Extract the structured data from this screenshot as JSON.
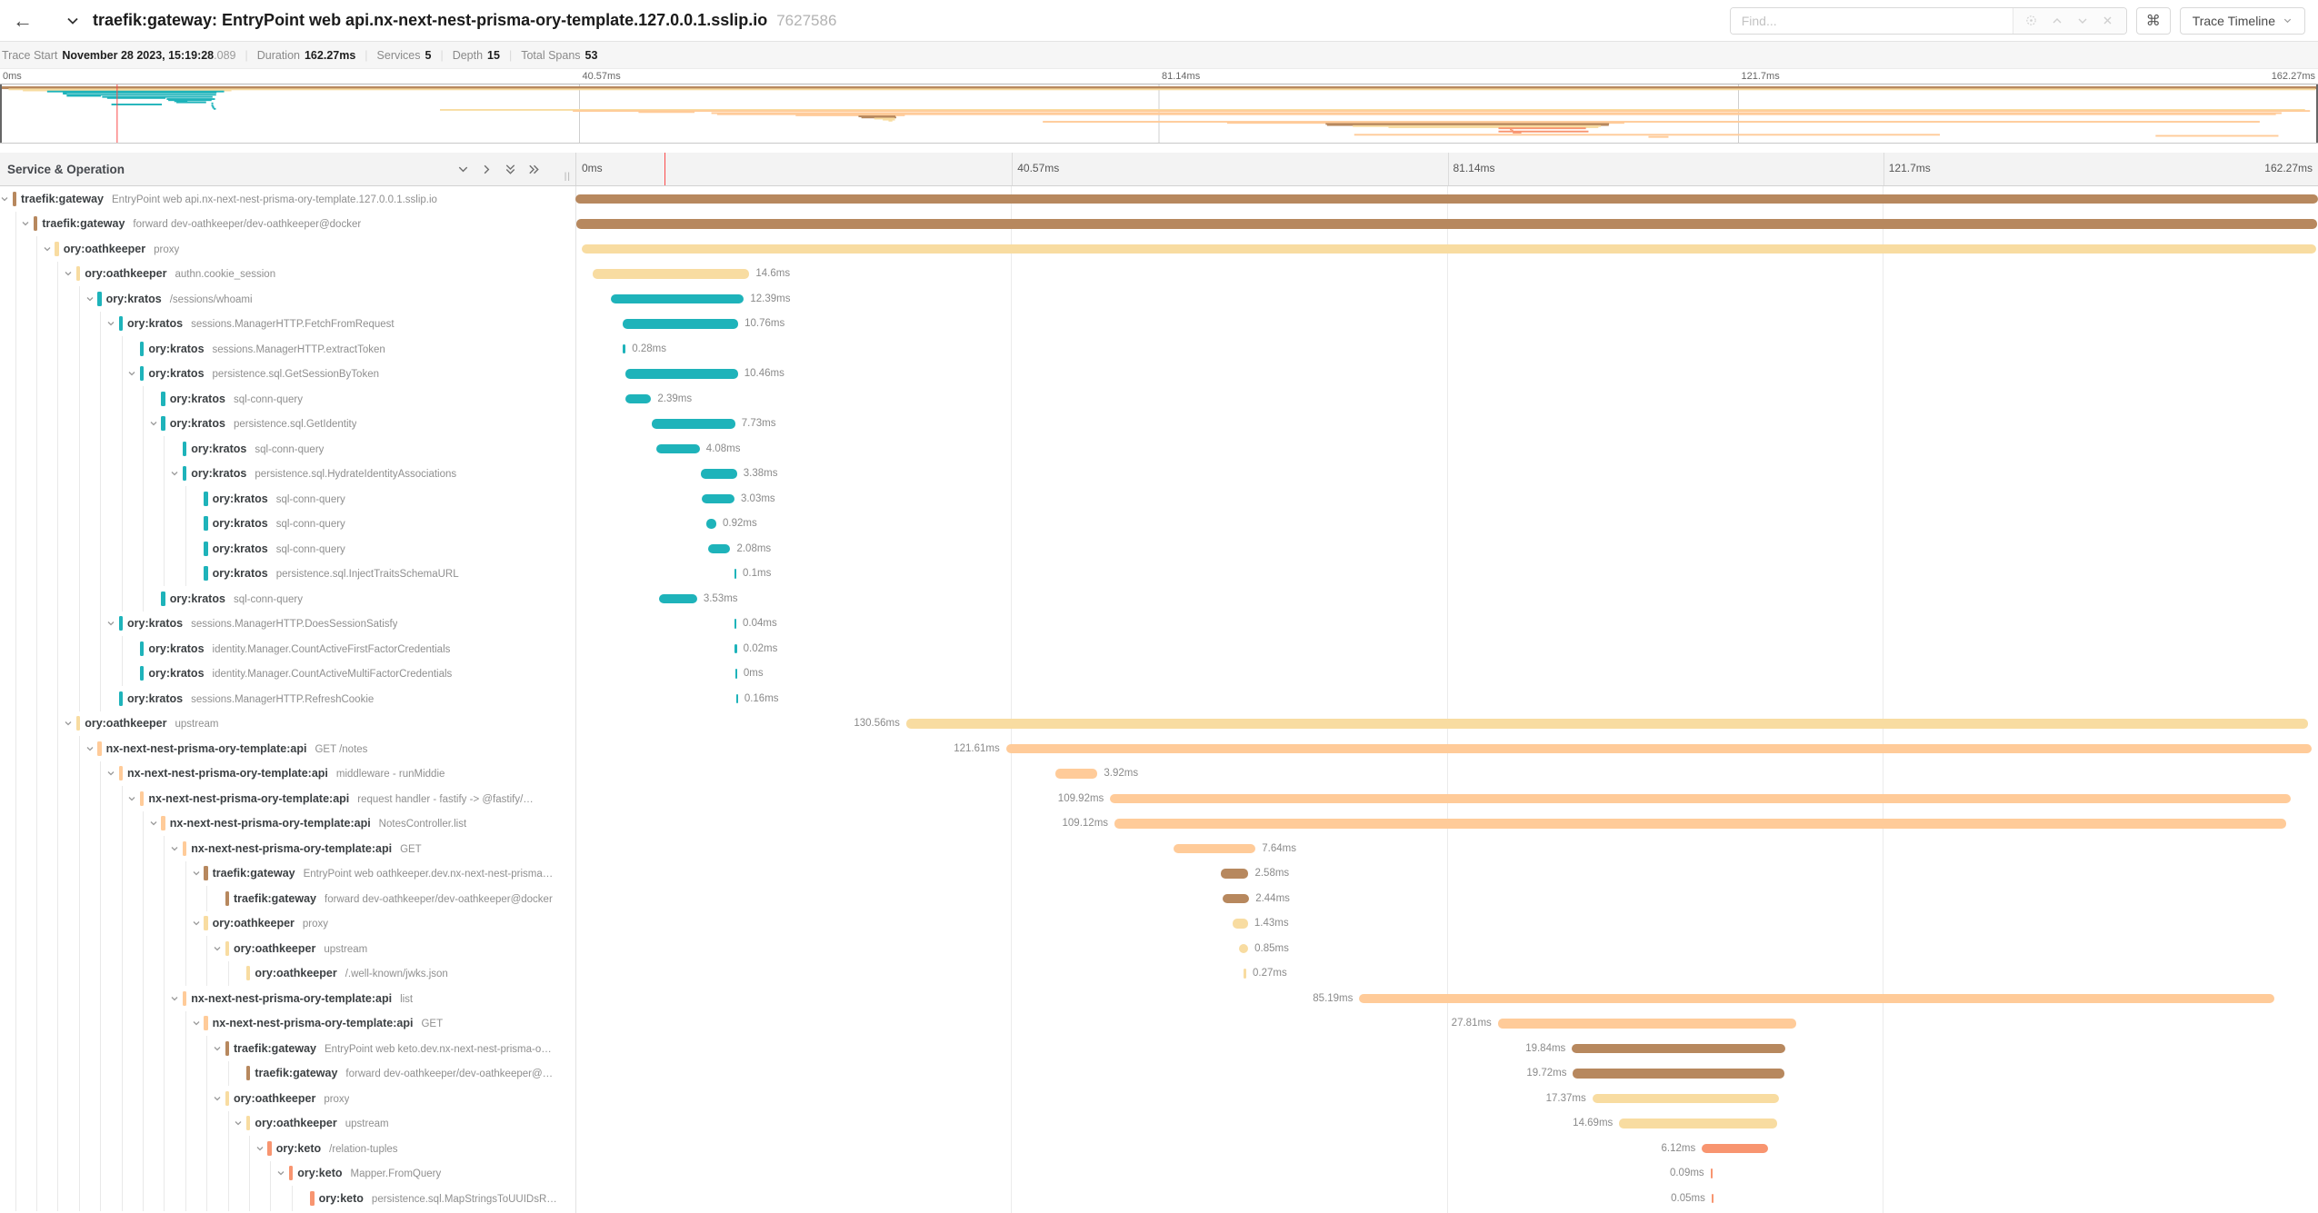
{
  "topbar": {
    "back_icon": "left-arrow",
    "title": "traefik:gateway: EntryPoint web api.nx-next-nest-prisma-ory-template.127.0.0.1.sslip.io",
    "trace_id": "7627586",
    "find_placeholder": "Find...",
    "find_icons": [
      "target-icon",
      "chevron-up-icon",
      "chevron-down-icon",
      "close-icon"
    ],
    "shortcut_button": "⌘",
    "view_dropdown": "Trace Timeline"
  },
  "meta": {
    "items": [
      {
        "label": "Trace Start",
        "value": "November 28 2023, 15:19:28",
        "suffix": ".089"
      },
      {
        "label": "Duration",
        "value": "162.27ms"
      },
      {
        "label": "Services",
        "value": "5"
      },
      {
        "label": "Depth",
        "value": "15"
      },
      {
        "label": "Total Spans",
        "value": "53"
      }
    ]
  },
  "timeline": {
    "header_left": "Service & Operation",
    "ticks": [
      "0ms",
      "40.57ms",
      "81.14ms",
      "121.7ms",
      "162.27ms"
    ],
    "total_ms": 162.27,
    "cursor_ms": 8.2
  },
  "service_colors": {
    "traefik:gateway": "#B7885E",
    "ory:oathkeeper": "#F8DCA1",
    "ory:kratos": "#1EB3BA",
    "nx-next-nest-prisma-ory-template:api": "#FFCB99",
    "ory:keto": "#F89570"
  },
  "spans": [
    {
      "service": "traefik:gateway",
      "operation": "EntryPoint web api.nx-next-nest-prisma-ory-template.127.0.0.1.sslip.io",
      "depth": 0,
      "has_children": true,
      "start_ms": 0,
      "duration_ms": 162.27,
      "label": ""
    },
    {
      "service": "traefik:gateway",
      "operation": "forward dev-oathkeeper/dev-oathkeeper@docker",
      "depth": 1,
      "has_children": true,
      "start_ms": 0.1,
      "duration_ms": 162.1,
      "label": ""
    },
    {
      "service": "ory:oathkeeper",
      "operation": "proxy",
      "depth": 2,
      "has_children": true,
      "start_ms": 0.6,
      "duration_ms": 161.5,
      "label": ""
    },
    {
      "service": "ory:oathkeeper",
      "operation": "authn.cookie_session",
      "depth": 3,
      "has_children": true,
      "start_ms": 1.6,
      "duration_ms": 14.6,
      "label": "14.6ms"
    },
    {
      "service": "ory:kratos",
      "operation": "/sessions/whoami",
      "depth": 4,
      "has_children": true,
      "start_ms": 3.3,
      "duration_ms": 12.39,
      "label": "12.39ms"
    },
    {
      "service": "ory:kratos",
      "operation": "sessions.ManagerHTTP.FetchFromRequest",
      "depth": 5,
      "has_children": true,
      "start_ms": 4.4,
      "duration_ms": 10.76,
      "label": "10.76ms"
    },
    {
      "service": "ory:kratos",
      "operation": "sessions.ManagerHTTP.extractToken",
      "depth": 6,
      "has_children": false,
      "start_ms": 4.4,
      "duration_ms": 0.28,
      "label": "0.28ms"
    },
    {
      "service": "ory:kratos",
      "operation": "persistence.sql.GetSessionByToken",
      "depth": 6,
      "has_children": true,
      "start_ms": 4.67,
      "duration_ms": 10.46,
      "label": "10.46ms"
    },
    {
      "service": "ory:kratos",
      "operation": "sql-conn-query",
      "depth": 7,
      "has_children": false,
      "start_ms": 4.67,
      "duration_ms": 2.39,
      "label": "2.39ms"
    },
    {
      "service": "ory:kratos",
      "operation": "persistence.sql.GetIdentity",
      "depth": 7,
      "has_children": true,
      "start_ms": 7.15,
      "duration_ms": 7.73,
      "label": "7.73ms"
    },
    {
      "service": "ory:kratos",
      "operation": "sql-conn-query",
      "depth": 8,
      "has_children": false,
      "start_ms": 7.5,
      "duration_ms": 4.08,
      "label": "4.08ms"
    },
    {
      "service": "ory:kratos",
      "operation": "persistence.sql.HydrateIdentityAssociations",
      "depth": 8,
      "has_children": true,
      "start_ms": 11.67,
      "duration_ms": 3.38,
      "label": "3.38ms"
    },
    {
      "service": "ory:kratos",
      "operation": "sql-conn-query",
      "depth": 9,
      "has_children": false,
      "start_ms": 11.78,
      "duration_ms": 3.03,
      "label": "3.03ms"
    },
    {
      "service": "ory:kratos",
      "operation": "sql-conn-query",
      "depth": 9,
      "has_children": false,
      "start_ms": 12.2,
      "duration_ms": 0.92,
      "label": "0.92ms"
    },
    {
      "service": "ory:kratos",
      "operation": "sql-conn-query",
      "depth": 9,
      "has_children": false,
      "start_ms": 12.35,
      "duration_ms": 2.08,
      "label": "2.08ms"
    },
    {
      "service": "ory:kratos",
      "operation": "persistence.sql.InjectTraitsSchemaURL",
      "depth": 9,
      "has_children": false,
      "start_ms": 14.8,
      "duration_ms": 0.1,
      "label": "0.1ms"
    },
    {
      "service": "ory:kratos",
      "operation": "sql-conn-query",
      "depth": 7,
      "has_children": false,
      "start_ms": 7.8,
      "duration_ms": 3.53,
      "label": "3.53ms"
    },
    {
      "service": "ory:kratos",
      "operation": "sessions.ManagerHTTP.DoesSessionSatisfy",
      "depth": 5,
      "has_children": true,
      "start_ms": 14.8,
      "duration_ms": 0.04,
      "label": "0.04ms"
    },
    {
      "service": "ory:kratos",
      "operation": "identity.Manager.CountActiveFirstFactorCredentials",
      "depth": 6,
      "has_children": false,
      "start_ms": 14.85,
      "duration_ms": 0.02,
      "label": "0.02ms"
    },
    {
      "service": "ory:kratos",
      "operation": "identity.Manager.CountActiveMultiFactorCredentials",
      "depth": 6,
      "has_children": false,
      "start_ms": 14.87,
      "duration_ms": 0,
      "label": "0ms"
    },
    {
      "service": "ory:kratos",
      "operation": "sessions.ManagerHTTP.RefreshCookie",
      "depth": 5,
      "has_children": false,
      "start_ms": 14.95,
      "duration_ms": 0.16,
      "label": "0.16ms"
    },
    {
      "service": "ory:oathkeeper",
      "operation": "upstream",
      "depth": 3,
      "has_children": true,
      "start_ms": 30.8,
      "duration_ms": 130.56,
      "label": "130.56ms"
    },
    {
      "service": "nx-next-nest-prisma-ory-template:api",
      "operation": "GET /notes",
      "depth": 4,
      "has_children": true,
      "start_ms": 40.1,
      "duration_ms": 121.61,
      "label": "121.61ms"
    },
    {
      "service": "nx-next-nest-prisma-ory-template:api",
      "operation": "middleware - runMiddie",
      "depth": 5,
      "has_children": true,
      "start_ms": 44.7,
      "duration_ms": 3.92,
      "label": "3.92ms"
    },
    {
      "service": "nx-next-nest-prisma-ory-template:api",
      "operation": "request handler - fastify -> @fastify/…",
      "depth": 6,
      "has_children": true,
      "start_ms": 49.8,
      "duration_ms": 109.92,
      "label": "109.92ms"
    },
    {
      "service": "nx-next-nest-prisma-ory-template:api",
      "operation": "NotesController.list",
      "depth": 7,
      "has_children": true,
      "start_ms": 50.2,
      "duration_ms": 109.12,
      "label": "109.12ms"
    },
    {
      "service": "nx-next-nest-prisma-ory-template:api",
      "operation": "GET",
      "depth": 8,
      "has_children": true,
      "start_ms": 55.7,
      "duration_ms": 7.64,
      "label": "7.64ms"
    },
    {
      "service": "traefik:gateway",
      "operation": "EntryPoint web oathkeeper.dev.nx-next-nest-prisma…",
      "depth": 9,
      "has_children": true,
      "start_ms": 60.1,
      "duration_ms": 2.58,
      "label": "2.58ms"
    },
    {
      "service": "traefik:gateway",
      "operation": "forward dev-oathkeeper/dev-oathkeeper@docker",
      "depth": 10,
      "has_children": false,
      "start_ms": 60.3,
      "duration_ms": 2.44,
      "label": "2.44ms"
    },
    {
      "service": "ory:oathkeeper",
      "operation": "proxy",
      "depth": 9,
      "has_children": true,
      "start_ms": 61.2,
      "duration_ms": 1.43,
      "label": "1.43ms"
    },
    {
      "service": "ory:oathkeeper",
      "operation": "upstream",
      "depth": 10,
      "has_children": true,
      "start_ms": 61.8,
      "duration_ms": 0.85,
      "label": "0.85ms"
    },
    {
      "service": "ory:oathkeeper",
      "operation": "/.well-known/jwks.json",
      "depth": 11,
      "has_children": false,
      "start_ms": 62.2,
      "duration_ms": 0.27,
      "label": "0.27ms"
    },
    {
      "service": "nx-next-nest-prisma-ory-template:api",
      "operation": "list",
      "depth": 8,
      "has_children": true,
      "start_ms": 73.0,
      "duration_ms": 85.19,
      "label": "85.19ms"
    },
    {
      "service": "nx-next-nest-prisma-ory-template:api",
      "operation": "GET",
      "depth": 9,
      "has_children": true,
      "start_ms": 85.9,
      "duration_ms": 27.81,
      "label": "27.81ms"
    },
    {
      "service": "traefik:gateway",
      "operation": "EntryPoint web keto.dev.nx-next-nest-prisma-o…",
      "depth": 10,
      "has_children": true,
      "start_ms": 92.8,
      "duration_ms": 19.84,
      "label": "19.84ms"
    },
    {
      "service": "traefik:gateway",
      "operation": "forward dev-oathkeeper/dev-oathkeeper@…",
      "depth": 11,
      "has_children": false,
      "start_ms": 92.9,
      "duration_ms": 19.72,
      "label": "19.72ms"
    },
    {
      "service": "ory:oathkeeper",
      "operation": "proxy",
      "depth": 10,
      "has_children": true,
      "start_ms": 94.7,
      "duration_ms": 17.37,
      "label": "17.37ms"
    },
    {
      "service": "ory:oathkeeper",
      "operation": "upstream",
      "depth": 11,
      "has_children": true,
      "start_ms": 97.2,
      "duration_ms": 14.69,
      "label": "14.69ms"
    },
    {
      "service": "ory:keto",
      "operation": "/relation-tuples",
      "depth": 12,
      "has_children": true,
      "start_ms": 104.9,
      "duration_ms": 6.12,
      "label": "6.12ms"
    },
    {
      "service": "ory:keto",
      "operation": "Mapper.FromQuery",
      "depth": 13,
      "has_children": true,
      "start_ms": 105.7,
      "duration_ms": 0.09,
      "label": "0.09ms"
    },
    {
      "service": "ory:keto",
      "operation": "persistence.sql.MapStringsToUUIDsR…",
      "depth": 14,
      "has_children": false,
      "start_ms": 105.8,
      "duration_ms": 0.05,
      "label": "0.05ms"
    }
  ],
  "minimap_extra_spans": [
    {
      "service": "ory:keto",
      "start_ms": 104.9,
      "duration_ms": 6.3,
      "row": 41
    },
    {
      "service": "ory:keto",
      "start_ms": 105.9,
      "duration_ms": 0.6,
      "row": 42
    },
    {
      "service": "nx-next-nest-prisma-ory-template:api",
      "start_ms": 94.8,
      "duration_ms": 41.0,
      "row": 44
    },
    {
      "service": "nx-next-nest-prisma-ory-template:api",
      "start_ms": 150.9,
      "duration_ms": 8.6,
      "row": 45
    },
    {
      "service": "nx-next-nest-prisma-ory-template:api",
      "start_ms": 115.4,
      "duration_ms": 1.4,
      "row": 46
    }
  ]
}
